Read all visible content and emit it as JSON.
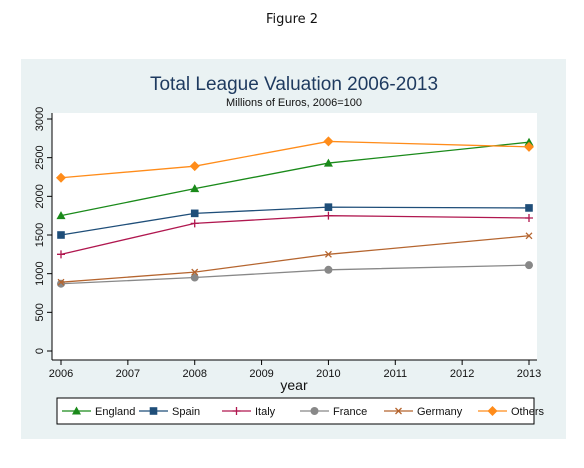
{
  "figure_label": "Figure 2",
  "chart_data": {
    "type": "line",
    "title": "Total League Valuation 2006-2013",
    "subtitle": "Millions of Euros, 2006=100",
    "xlabel": "year",
    "ylabel": "",
    "x": [
      2006,
      2008,
      2010,
      2013
    ],
    "x_ticks": [
      "2006",
      "2007",
      "2008",
      "2009",
      "2010",
      "2011",
      "2012",
      "2013"
    ],
    "xlim": [
      2006,
      2013
    ],
    "y_ticks": [
      "0",
      "500",
      "1000",
      "1500",
      "2000",
      "2500",
      "3000"
    ],
    "ylim": [
      0,
      3000
    ],
    "grid": false,
    "legend_position": "bottom",
    "series": [
      {
        "name": "England",
        "color": "#1a8a1a",
        "marker": "triangle",
        "values": [
          1750,
          2100,
          2430,
          2700
        ]
      },
      {
        "name": "Spain",
        "color": "#1f4e79",
        "marker": "square",
        "values": [
          1500,
          1780,
          1860,
          1850
        ]
      },
      {
        "name": "Italy",
        "color": "#b0174f",
        "marker": "plus",
        "values": [
          1250,
          1650,
          1750,
          1720
        ]
      },
      {
        "name": "France",
        "color": "#888888",
        "marker": "circle",
        "values": [
          870,
          950,
          1050,
          1110
        ]
      },
      {
        "name": "Germany",
        "color": "#b5652f",
        "marker": "x",
        "values": [
          890,
          1020,
          1250,
          1490
        ]
      },
      {
        "name": "Others",
        "color": "#ff8c1a",
        "marker": "diamond",
        "values": [
          2240,
          2390,
          2710,
          2640
        ]
      }
    ]
  }
}
